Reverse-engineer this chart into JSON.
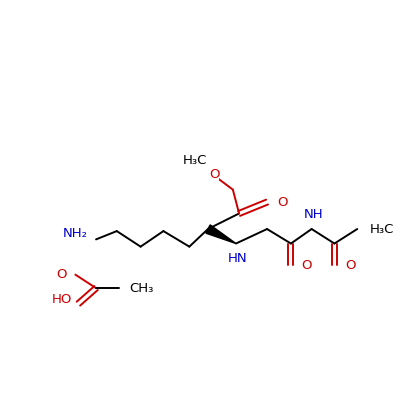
{
  "bg_color": "#ffffff",
  "bond_color": "#000000",
  "red_color": "#cc0000",
  "blue_color": "#0000cc",
  "figsize": [
    4.0,
    4.0
  ],
  "dpi": 100,
  "xlim": [
    30,
    370
  ],
  "ylim": [
    80,
    330
  ],
  "fs": 9.5
}
